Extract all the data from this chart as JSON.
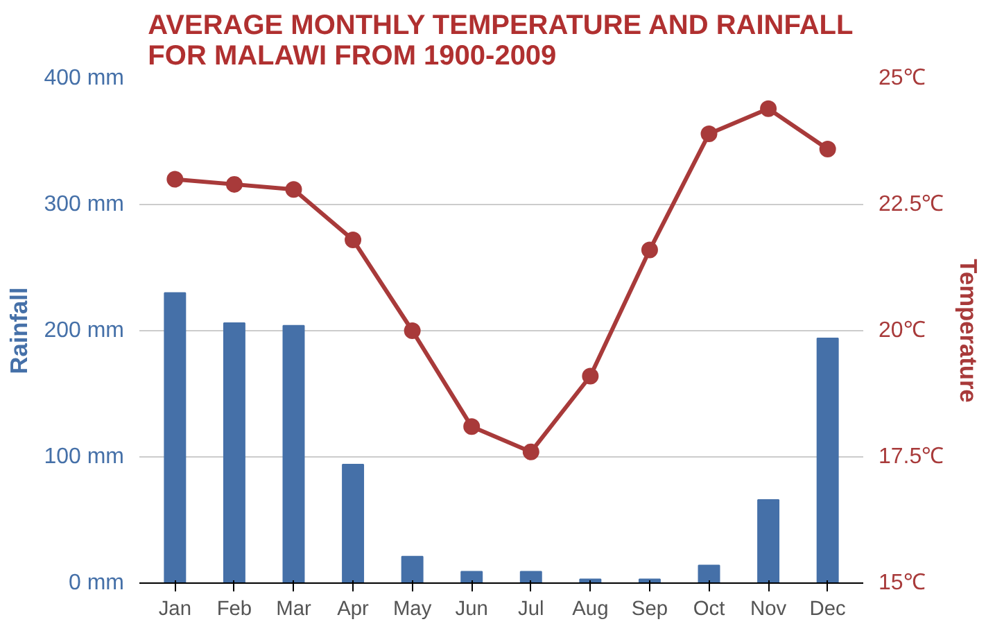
{
  "chart_data": {
    "type": "bar",
    "title": "AVERAGE MONTHLY TEMPERATURE AND RAINFALL\nFOR MALAWI FROM 1900-2009",
    "categories": [
      "Jan",
      "Feb",
      "Mar",
      "Apr",
      "May",
      "Jun",
      "Jul",
      "Aug",
      "Sep",
      "Oct",
      "Nov",
      "Dec"
    ],
    "ylabel": "Rainfall",
    "y2label": "Temperature",
    "ylim": [
      0,
      400
    ],
    "yticks": [
      {
        "value": 0,
        "label": "0 mm"
      },
      {
        "value": 100,
        "label": "100 mm"
      },
      {
        "value": 200,
        "label": "200 mm"
      },
      {
        "value": 300,
        "label": "300 mm"
      },
      {
        "value": 400,
        "label": "400 mm"
      }
    ],
    "y2lim": [
      15,
      25
    ],
    "y2ticks": [
      {
        "value": 15,
        "label": "15℃"
      },
      {
        "value": 17.5,
        "label": "17.5℃"
      },
      {
        "value": 20,
        "label": "20℃"
      },
      {
        "value": 22.5,
        "label": "22.5℃"
      },
      {
        "value": 25,
        "label": "25℃"
      }
    ],
    "grid": "y",
    "marker": "circle",
    "series": [
      {
        "color": "#4570a8",
        "values": [
          230,
          206,
          204,
          94,
          21,
          9,
          9,
          3,
          3,
          14,
          66,
          194
        ]
      },
      {
        "type": "line",
        "axis": "y2",
        "color": "#a83a3a",
        "values": [
          23.0,
          22.9,
          22.8,
          21.8,
          20.0,
          18.1,
          17.6,
          19.1,
          21.6,
          23.9,
          24.4,
          23.6
        ]
      }
    ]
  }
}
